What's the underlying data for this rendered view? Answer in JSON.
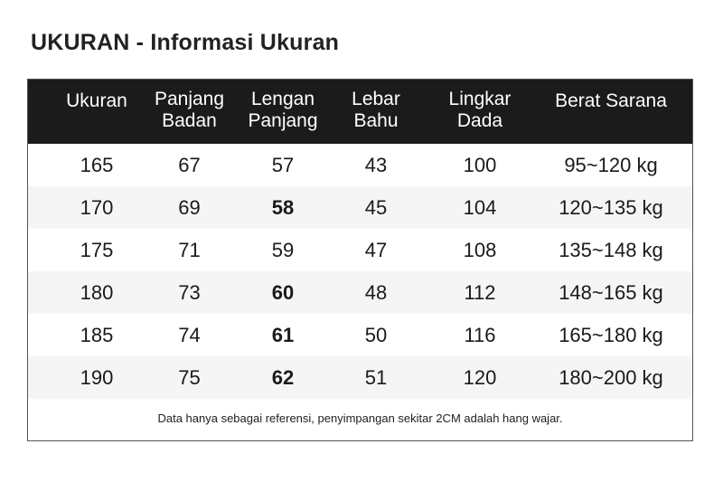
{
  "page": {
    "title": "UKURAN - Informasi Ukuran"
  },
  "table": {
    "headers": [
      "Ukuran",
      "Panjang\nBadan",
      "Lengan\nPanjang",
      "Lebar\nBahu",
      "Lingkar\nDada",
      "Berat Sarana"
    ],
    "rows": [
      [
        "165",
        "67",
        "57",
        "43",
        "100",
        "95~120 kg"
      ],
      [
        "170",
        "69",
        "58",
        "45",
        "104",
        "120~135 kg"
      ],
      [
        "175",
        "71",
        "59",
        "47",
        "108",
        "135~148 kg"
      ],
      [
        "180",
        "73",
        "60",
        "48",
        "112",
        "148~165 kg"
      ],
      [
        "185",
        "74",
        "61",
        "50",
        "116",
        "165~180 kg"
      ],
      [
        "190",
        "75",
        "62",
        "51",
        "120",
        "180~200 kg"
      ]
    ],
    "bold_sleeve_rows": [
      1,
      3,
      4,
      5
    ],
    "footnote": "Data hanya sebagai referensi, penyimpangan sekitar 2CM adalah hang wajar."
  },
  "colors": {
    "header_bg": "#1b1b1b",
    "header_text": "#ffffff",
    "alt_row_bg": "#f5f5f5",
    "border": "#555555"
  }
}
